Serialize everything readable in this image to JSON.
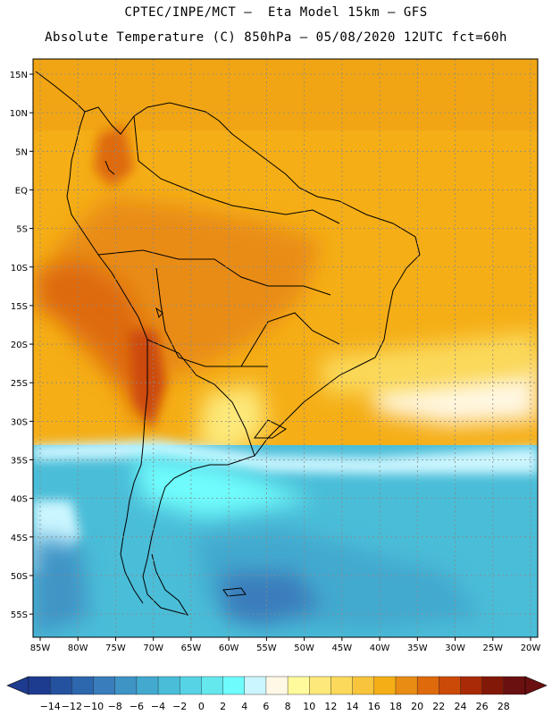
{
  "header": {
    "title_line1": "CPTEC/INPE/MCT –  Eta Model 15km – GFS",
    "title_line2": "Absolute Temperature (C) 850hPa – 05/08/2020 12UTC fct=60h"
  },
  "map": {
    "lat_labels": [
      "15N",
      "10N",
      "5N",
      "EQ",
      "5S",
      "10S",
      "15S",
      "20S",
      "25S",
      "30S",
      "35S",
      "40S",
      "45S",
      "50S",
      "55S"
    ],
    "lon_labels": [
      "85W",
      "80W",
      "75W",
      "70W",
      "65W",
      "60W",
      "55W",
      "50W",
      "45W",
      "40W",
      "35W",
      "30W",
      "25W",
      "20W"
    ],
    "lat_range": [
      15,
      -58
    ],
    "lon_range": [
      -85,
      -20
    ],
    "grid": true
  },
  "colorbar": {
    "labels": [
      "-14",
      "-12",
      "-10",
      "-8",
      "-6",
      "-4",
      "-2",
      "0",
      "2",
      "4",
      "6",
      "8",
      "10",
      "12",
      "14",
      "16",
      "18",
      "20",
      "22",
      "24",
      "26",
      "28"
    ],
    "colors": [
      "#1d3b8f",
      "#25529e",
      "#2d67ad",
      "#3a7dbc",
      "#3f94c6",
      "#43a9cf",
      "#4abdd8",
      "#56d3e4",
      "#64e8ee",
      "#6ffcfc",
      "#ccf6ff",
      "#fff8e6",
      "#fffa9c",
      "#fde97a",
      "#fbd95a",
      "#f8c43c",
      "#f5ae16",
      "#e98c14",
      "#de6a0c",
      "#cc4a08",
      "#a82a06",
      "#821808",
      "#6a1010"
    ]
  }
}
